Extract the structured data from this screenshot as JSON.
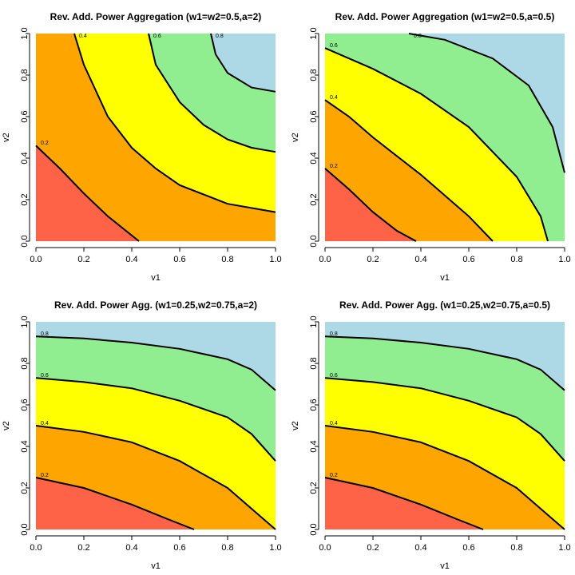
{
  "chart_data": [
    {
      "type": "contour",
      "title": "Rev. Add. Power Aggregation (w1=w2=0.5,a=2)",
      "x_label": "v1",
      "y_label": "v2",
      "xlim": [
        0,
        1
      ],
      "ylim": [
        0,
        1
      ],
      "xticks": [
        {
          "value": 0,
          "label": "0.0"
        },
        0.2,
        0.4,
        0.6,
        0.8,
        {
          "value": 1,
          "label": "1.0"
        }
      ],
      "yticks": [
        {
          "value": 0,
          "label": "0.0"
        },
        0.2,
        0.4,
        0.6,
        0.8,
        {
          "value": 1,
          "label": "1.0"
        }
      ],
      "colors": [
        "#ff6347",
        "#ffa500",
        "#ffff00",
        "#90ee90",
        "#add8e6"
      ],
      "contours": [
        {
          "level": 0.2,
          "x": [
            0,
            0.1,
            0.2,
            0.3,
            0.43
          ],
          "y": [
            0.46,
            0.35,
            0.23,
            0.12,
            0
          ]
        },
        {
          "level": 0.4,
          "x": [
            0.16,
            0.2,
            0.3,
            0.4,
            0.5,
            0.6,
            0.8,
            1
          ],
          "y": [
            1,
            0.85,
            0.6,
            0.45,
            0.35,
            0.27,
            0.18,
            0.14
          ]
        },
        {
          "level": 0.6,
          "x": [
            0.47,
            0.5,
            0.6,
            0.7,
            0.8,
            0.9,
            1
          ],
          "y": [
            1,
            0.85,
            0.67,
            0.56,
            0.49,
            0.45,
            0.43
          ]
        },
        {
          "level": 0.8,
          "x": [
            0.73,
            0.75,
            0.8,
            0.9,
            1
          ],
          "y": [
            1,
            0.9,
            0.81,
            0.74,
            0.72
          ]
        }
      ]
    },
    {
      "type": "contour",
      "title": "Rev. Add. Power Aggregation (w1=w2=0.5,a=0.5)",
      "x_label": "v1",
      "y_label": "v2",
      "xlim": [
        0,
        1
      ],
      "ylim": [
        0,
        1
      ],
      "xticks": [
        {
          "value": 0,
          "label": "0.0"
        },
        0.2,
        0.4,
        0.6,
        0.8,
        {
          "value": 1,
          "label": "1.0"
        }
      ],
      "yticks": [
        {
          "value": 0,
          "label": "0.0"
        },
        0.2,
        0.4,
        0.6,
        0.8,
        {
          "value": 1,
          "label": "1.0"
        }
      ],
      "colors": [
        "#ff6347",
        "#ffa500",
        "#ffff00",
        "#90ee90",
        "#add8e6"
      ],
      "contours": [
        {
          "level": 0.2,
          "x": [
            0,
            0.1,
            0.2,
            0.3,
            0.38
          ],
          "y": [
            0.35,
            0.25,
            0.14,
            0.05,
            0
          ]
        },
        {
          "level": 0.4,
          "x": [
            0,
            0.1,
            0.2,
            0.3,
            0.4,
            0.5,
            0.6,
            0.7
          ],
          "y": [
            0.68,
            0.6,
            0.5,
            0.41,
            0.32,
            0.22,
            0.12,
            0
          ]
        },
        {
          "level": 0.6,
          "x": [
            0,
            0.1,
            0.2,
            0.4,
            0.6,
            0.8,
            0.9,
            0.93
          ],
          "y": [
            0.93,
            0.88,
            0.83,
            0.71,
            0.55,
            0.31,
            0.12,
            0
          ]
        },
        {
          "level": 0.8,
          "x": [
            0.35,
            0.5,
            0.7,
            0.85,
            0.95,
            1
          ],
          "y": [
            1,
            0.97,
            0.88,
            0.75,
            0.55,
            0.33
          ]
        }
      ]
    },
    {
      "type": "contour",
      "title": "Rev. Add. Power Agg. (w1=0.25,w2=0.75,a=2)",
      "x_label": "v1",
      "y_label": "v2",
      "xlim": [
        0,
        1
      ],
      "ylim": [
        0,
        1
      ],
      "xticks": [
        {
          "value": 0,
          "label": "0.0"
        },
        0.2,
        0.4,
        0.6,
        0.8,
        {
          "value": 1,
          "label": "1.0"
        }
      ],
      "yticks": [
        {
          "value": 0,
          "label": "0.0"
        },
        0.2,
        0.4,
        0.6,
        0.8,
        {
          "value": 1,
          "label": "1.0"
        }
      ],
      "colors": [
        "#ff6347",
        "#ffa500",
        "#ffff00",
        "#90ee90",
        "#add8e6"
      ],
      "contours": [
        {
          "level": 0.2,
          "x": [
            0,
            0.2,
            0.4,
            0.55,
            0.66
          ],
          "y": [
            0.25,
            0.2,
            0.12,
            0.05,
            0
          ]
        },
        {
          "level": 0.4,
          "x": [
            0,
            0.2,
            0.4,
            0.6,
            0.8,
            0.9,
            1
          ],
          "y": [
            0.5,
            0.47,
            0.42,
            0.33,
            0.2,
            0.1,
            0
          ]
        },
        {
          "level": 0.6,
          "x": [
            0,
            0.2,
            0.4,
            0.6,
            0.8,
            0.9,
            1
          ],
          "y": [
            0.73,
            0.71,
            0.68,
            0.62,
            0.54,
            0.46,
            0.33
          ]
        },
        {
          "level": 0.8,
          "x": [
            0,
            0.2,
            0.4,
            0.6,
            0.8,
            0.9,
            1
          ],
          "y": [
            0.93,
            0.92,
            0.9,
            0.87,
            0.82,
            0.77,
            0.67
          ]
        }
      ]
    },
    {
      "type": "contour",
      "title": "Rev. Add. Power Agg. (w1=0.25,w2=0.75,a=0.5)",
      "x_label": "v1",
      "y_label": "v2",
      "xlim": [
        0,
        1
      ],
      "ylim": [
        0,
        1
      ],
      "xticks": [
        {
          "value": 0,
          "label": "0.0"
        },
        0.2,
        0.4,
        0.6,
        0.8,
        {
          "value": 1,
          "label": "1.0"
        }
      ],
      "yticks": [
        {
          "value": 0,
          "label": "0.0"
        },
        0.2,
        0.4,
        0.6,
        0.8,
        {
          "value": 1,
          "label": "1.0"
        }
      ],
      "colors": [
        "#ff6347",
        "#ffa500",
        "#ffff00",
        "#90ee90",
        "#add8e6"
      ],
      "contours": [
        {
          "level": 0.2,
          "x": [
            0,
            0.2,
            0.4,
            0.55,
            0.66
          ],
          "y": [
            0.25,
            0.2,
            0.12,
            0.05,
            0
          ]
        },
        {
          "level": 0.4,
          "x": [
            0,
            0.2,
            0.4,
            0.6,
            0.8,
            0.9,
            1
          ],
          "y": [
            0.5,
            0.47,
            0.42,
            0.33,
            0.2,
            0.1,
            0
          ]
        },
        {
          "level": 0.6,
          "x": [
            0,
            0.2,
            0.4,
            0.6,
            0.8,
            0.9,
            1
          ],
          "y": [
            0.73,
            0.71,
            0.68,
            0.62,
            0.54,
            0.46,
            0.33
          ]
        },
        {
          "level": 0.8,
          "x": [
            0,
            0.2,
            0.4,
            0.6,
            0.8,
            0.9,
            1
          ],
          "y": [
            0.93,
            0.92,
            0.9,
            0.87,
            0.82,
            0.77,
            0.67
          ]
        }
      ]
    }
  ]
}
